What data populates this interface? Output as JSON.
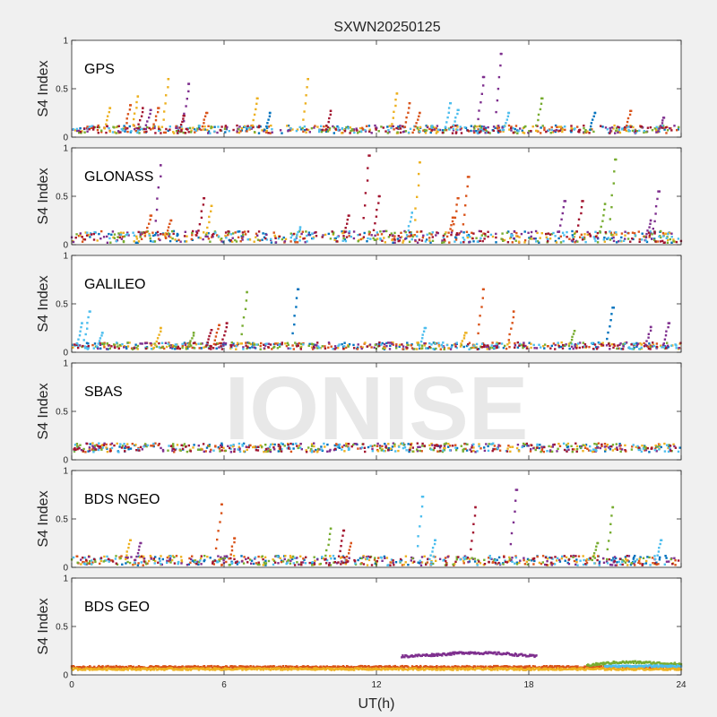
{
  "figure": {
    "title": "SXWN20250125",
    "xlabel": "UT(h)",
    "watermark": "IONISE",
    "background": "#f0f0f0",
    "axes_background": "#ffffff",
    "palette": [
      "#0072bd",
      "#d95319",
      "#edb120",
      "#7e2f8e",
      "#77ac30",
      "#4dbeee",
      "#a2142f"
    ]
  },
  "chart_data": [
    {
      "type": "scatter",
      "panel": "GPS",
      "label": "GPS",
      "ylabel": "S4 Index",
      "xlim": [
        0,
        24
      ],
      "ylim": [
        0,
        1
      ],
      "yticks": [
        0,
        0.5,
        1
      ],
      "ytick_labels": [
        "0",
        "0.5",
        "1"
      ],
      "xticks": [
        0,
        6,
        12,
        18,
        24
      ],
      "show_xtick_labels": false,
      "baseline": [
        0.04,
        0.12
      ],
      "spikes": [
        {
          "x": 1.5,
          "y": 0.3,
          "color": "#edb120"
        },
        {
          "x": 2.3,
          "y": 0.33,
          "color": "#d95319"
        },
        {
          "x": 2.6,
          "y": 0.42,
          "color": "#edb120"
        },
        {
          "x": 2.8,
          "y": 0.3,
          "color": "#a2142f"
        },
        {
          "x": 3.1,
          "y": 0.28,
          "color": "#7e2f8e"
        },
        {
          "x": 3.4,
          "y": 0.3,
          "color": "#d95319"
        },
        {
          "x": 3.8,
          "y": 0.6,
          "color": "#edb120"
        },
        {
          "x": 4.6,
          "y": 0.55,
          "color": "#7e2f8e"
        },
        {
          "x": 4.4,
          "y": 0.22,
          "color": "#a2142f"
        },
        {
          "x": 5.3,
          "y": 0.25,
          "color": "#d95319"
        },
        {
          "x": 7.3,
          "y": 0.4,
          "color": "#edb120"
        },
        {
          "x": 7.8,
          "y": 0.25,
          "color": "#0072bd"
        },
        {
          "x": 9.3,
          "y": 0.6,
          "color": "#edb120"
        },
        {
          "x": 10.2,
          "y": 0.27,
          "color": "#a2142f"
        },
        {
          "x": 12.8,
          "y": 0.45,
          "color": "#edb120"
        },
        {
          "x": 13.3,
          "y": 0.35,
          "color": "#d95319"
        },
        {
          "x": 13.7,
          "y": 0.25,
          "color": "#d95319"
        },
        {
          "x": 14.9,
          "y": 0.35,
          "color": "#4dbeee"
        },
        {
          "x": 15.2,
          "y": 0.28,
          "color": "#4dbeee"
        },
        {
          "x": 16.2,
          "y": 0.62,
          "color": "#7e2f8e"
        },
        {
          "x": 16.9,
          "y": 0.86,
          "color": "#7e2f8e"
        },
        {
          "x": 17.2,
          "y": 0.25,
          "color": "#4dbeee"
        },
        {
          "x": 18.5,
          "y": 0.4,
          "color": "#77ac30"
        },
        {
          "x": 20.6,
          "y": 0.25,
          "color": "#0072bd"
        },
        {
          "x": 22.0,
          "y": 0.27,
          "color": "#d95319"
        },
        {
          "x": 23.3,
          "y": 0.2,
          "color": "#7e2f8e"
        }
      ]
    },
    {
      "type": "scatter",
      "panel": "GLONASS",
      "label": "GLONASS",
      "ylabel": "S4 Index",
      "xlim": [
        0,
        24
      ],
      "ylim": [
        0,
        1
      ],
      "yticks": [
        0,
        0.5,
        1
      ],
      "ytick_labels": [
        "0",
        "0.5",
        "1"
      ],
      "xticks": [
        0,
        6,
        12,
        18,
        24
      ],
      "show_xtick_labels": false,
      "baseline": [
        0.02,
        0.14
      ],
      "spikes": [
        {
          "x": 3.1,
          "y": 0.3,
          "color": "#d95319"
        },
        {
          "x": 3.5,
          "y": 0.82,
          "color": "#7e2f8e"
        },
        {
          "x": 3.9,
          "y": 0.25,
          "color": "#d95319"
        },
        {
          "x": 5.2,
          "y": 0.48,
          "color": "#a2142f"
        },
        {
          "x": 5.5,
          "y": 0.4,
          "color": "#edb120"
        },
        {
          "x": 9.0,
          "y": 0.18,
          "color": "#4dbeee"
        },
        {
          "x": 10.9,
          "y": 0.3,
          "color": "#a2142f"
        },
        {
          "x": 11.7,
          "y": 0.92,
          "color": "#a2142f"
        },
        {
          "x": 12.1,
          "y": 0.5,
          "color": "#a2142f"
        },
        {
          "x": 13.4,
          "y": 0.33,
          "color": "#4dbeee"
        },
        {
          "x": 13.7,
          "y": 0.85,
          "color": "#edb120"
        },
        {
          "x": 15.2,
          "y": 0.48,
          "color": "#d95319"
        },
        {
          "x": 15.6,
          "y": 0.7,
          "color": "#d95319"
        },
        {
          "x": 15.0,
          "y": 0.28,
          "color": "#d95319"
        },
        {
          "x": 19.4,
          "y": 0.45,
          "color": "#7e2f8e"
        },
        {
          "x": 20.1,
          "y": 0.45,
          "color": "#a2142f"
        },
        {
          "x": 21.4,
          "y": 0.88,
          "color": "#77ac30"
        },
        {
          "x": 21.0,
          "y": 0.42,
          "color": "#77ac30"
        },
        {
          "x": 23.1,
          "y": 0.55,
          "color": "#7e2f8e"
        },
        {
          "x": 22.8,
          "y": 0.25,
          "color": "#7e2f8e"
        }
      ]
    },
    {
      "type": "scatter",
      "panel": "GALILEO",
      "label": "GALILEO",
      "ylabel": "S4 Index",
      "xlim": [
        0,
        24
      ],
      "ylim": [
        0,
        1
      ],
      "yticks": [
        0,
        0.5,
        1
      ],
      "ytick_labels": [
        "0",
        "0.5",
        "1"
      ],
      "xticks": [
        0,
        6,
        12,
        18,
        24
      ],
      "show_xtick_labels": false,
      "baseline": [
        0.03,
        0.1
      ],
      "spikes": [
        {
          "x": 0.4,
          "y": 0.3,
          "color": "#4dbeee"
        },
        {
          "x": 0.7,
          "y": 0.42,
          "color": "#4dbeee"
        },
        {
          "x": 1.2,
          "y": 0.2,
          "color": "#4dbeee"
        },
        {
          "x": 3.5,
          "y": 0.25,
          "color": "#edb120"
        },
        {
          "x": 4.8,
          "y": 0.2,
          "color": "#77ac30"
        },
        {
          "x": 5.5,
          "y": 0.23,
          "color": "#a2142f"
        },
        {
          "x": 5.8,
          "y": 0.28,
          "color": "#d95319"
        },
        {
          "x": 6.1,
          "y": 0.3,
          "color": "#a2142f"
        },
        {
          "x": 6.9,
          "y": 0.62,
          "color": "#77ac30"
        },
        {
          "x": 8.9,
          "y": 0.65,
          "color": "#0072bd"
        },
        {
          "x": 13.9,
          "y": 0.25,
          "color": "#4dbeee"
        },
        {
          "x": 16.2,
          "y": 0.65,
          "color": "#d95319"
        },
        {
          "x": 17.4,
          "y": 0.42,
          "color": "#d95319"
        },
        {
          "x": 21.3,
          "y": 0.46,
          "color": "#0072bd"
        },
        {
          "x": 22.8,
          "y": 0.26,
          "color": "#7e2f8e"
        },
        {
          "x": 23.5,
          "y": 0.3,
          "color": "#7e2f8e"
        },
        {
          "x": 15.5,
          "y": 0.2,
          "color": "#edb120"
        },
        {
          "x": 19.8,
          "y": 0.22,
          "color": "#77ac30"
        }
      ]
    },
    {
      "type": "scatter",
      "panel": "SBAS",
      "label": "SBAS",
      "ylabel": "S4 Index",
      "xlim": [
        0,
        24
      ],
      "ylim": [
        0,
        1
      ],
      "yticks": [
        0,
        0.5,
        1
      ],
      "ytick_labels": [
        "0",
        "0.5",
        "1"
      ],
      "xticks": [
        0,
        6,
        12,
        18,
        24
      ],
      "show_xtick_labels": false,
      "baseline": [
        0.08,
        0.17
      ],
      "spikes": []
    },
    {
      "type": "scatter",
      "panel": "BDS NGEO",
      "label": "BDS NGEO",
      "ylabel": "S4 Index",
      "xlim": [
        0,
        24
      ],
      "ylim": [
        0,
        1
      ],
      "yticks": [
        0,
        0.5,
        1
      ],
      "ytick_labels": [
        "0",
        "0.5",
        "1"
      ],
      "xticks": [
        0,
        6,
        12,
        18,
        24
      ],
      "show_xtick_labels": false,
      "baseline": [
        0.02,
        0.12
      ],
      "spikes": [
        {
          "x": 2.3,
          "y": 0.28,
          "color": "#edb120"
        },
        {
          "x": 2.7,
          "y": 0.25,
          "color": "#7e2f8e"
        },
        {
          "x": 5.9,
          "y": 0.65,
          "color": "#d95319"
        },
        {
          "x": 6.4,
          "y": 0.3,
          "color": "#d95319"
        },
        {
          "x": 10.2,
          "y": 0.4,
          "color": "#77ac30"
        },
        {
          "x": 10.7,
          "y": 0.38,
          "color": "#a2142f"
        },
        {
          "x": 11.0,
          "y": 0.25,
          "color": "#d95319"
        },
        {
          "x": 13.8,
          "y": 0.73,
          "color": "#4dbeee"
        },
        {
          "x": 14.3,
          "y": 0.28,
          "color": "#4dbeee"
        },
        {
          "x": 15.9,
          "y": 0.62,
          "color": "#a2142f"
        },
        {
          "x": 17.5,
          "y": 0.8,
          "color": "#7e2f8e"
        },
        {
          "x": 21.3,
          "y": 0.62,
          "color": "#77ac30"
        },
        {
          "x": 20.7,
          "y": 0.25,
          "color": "#77ac30"
        },
        {
          "x": 23.2,
          "y": 0.28,
          "color": "#4dbeee"
        }
      ]
    },
    {
      "type": "scatter",
      "panel": "BDS GEO",
      "label": "BDS GEO",
      "ylabel": "S4 Index",
      "xlim": [
        0,
        24
      ],
      "ylim": [
        0,
        1
      ],
      "yticks": [
        0,
        0.5,
        1
      ],
      "ytick_labels": [
        "0",
        "0.5",
        "1"
      ],
      "xticks": [
        0,
        6,
        12,
        18,
        24
      ],
      "xtick_labels": [
        "0",
        "6",
        "12",
        "18",
        "24"
      ],
      "show_xtick_labels": true,
      "series": [
        {
          "color": "#d95319",
          "x": [
            0,
            24
          ],
          "y": [
            0.08,
            0.08
          ],
          "jitter": 0.012
        },
        {
          "color": "#edb120",
          "x": [
            0,
            24
          ],
          "y": [
            0.06,
            0.06
          ],
          "jitter": 0.01
        },
        {
          "color": "#7e2f8e",
          "x": [
            13.0,
            14.5,
            15.5,
            17.0,
            18.3
          ],
          "y": [
            0.19,
            0.21,
            0.23,
            0.22,
            0.19
          ],
          "jitter": 0.012
        },
        {
          "color": "#77ac30",
          "x": [
            20.3,
            21.5,
            22.3,
            24.0
          ],
          "y": [
            0.1,
            0.13,
            0.13,
            0.11
          ],
          "jitter": 0.012
        },
        {
          "color": "#4dbeee",
          "x": [
            21.0,
            24.0
          ],
          "y": [
            0.09,
            0.09
          ],
          "jitter": 0.008
        }
      ]
    }
  ]
}
